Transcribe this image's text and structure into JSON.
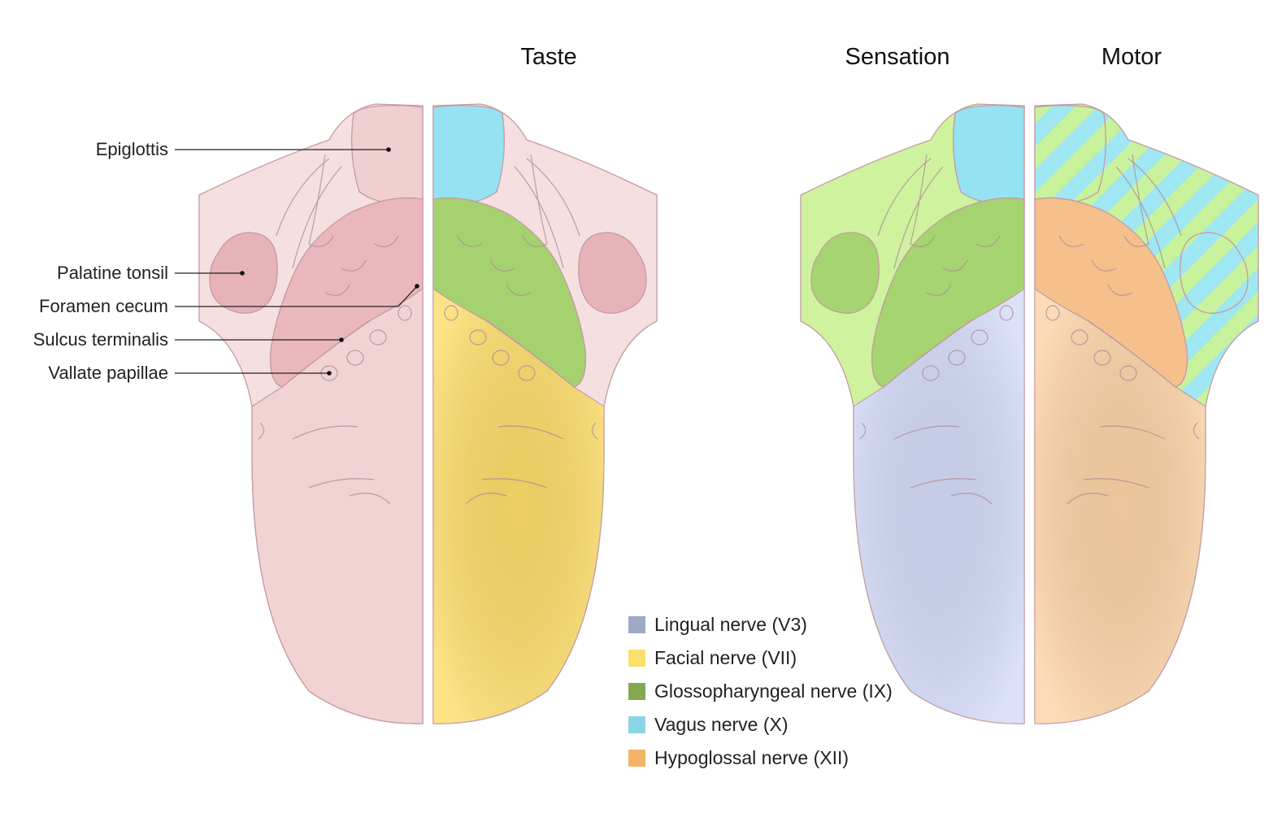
{
  "titles": {
    "taste": "Taste",
    "sensation": "Sensation",
    "motor": "Motor"
  },
  "labels": [
    "Epiglottis",
    "Palatine tonsil",
    "Foramen cecum",
    "Sulcus terminalis",
    "Vallate papillae"
  ],
  "legend": [
    {
      "label": "Lingual nerve (V3)",
      "color": "#9fa9c6"
    },
    {
      "label": "Facial nerve (VII)",
      "color": "#f9e06a"
    },
    {
      "label": "Glossopharyngeal nerve (IX)",
      "color": "#84a851"
    },
    {
      "label": "Vagus nerve (X)",
      "color": "#89d5e3"
    },
    {
      "label": "Hypoglossal nerve (XII)",
      "color": "#f3b468"
    }
  ]
}
